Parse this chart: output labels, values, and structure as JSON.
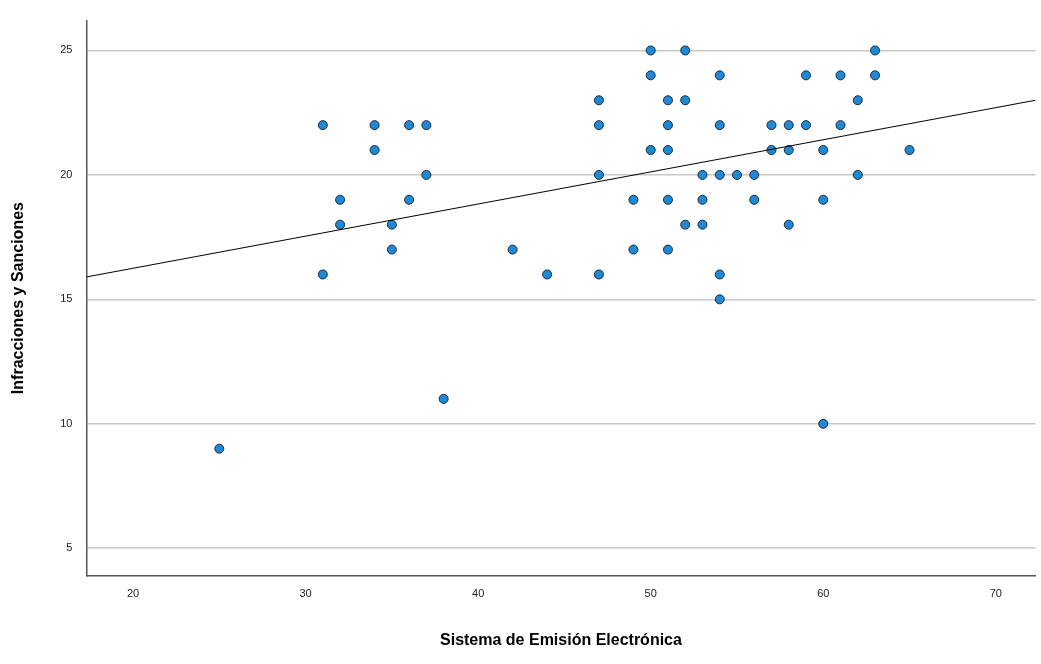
{
  "chart_data": {
    "type": "scatter",
    "xlabel": "Sistema de Emisión Electrónica",
    "ylabel": "Infracciones y Sanciones",
    "xlim": [
      17.3,
      72.3
    ],
    "xticks": [
      20,
      30,
      40,
      50,
      60,
      70
    ],
    "ylim": [
      3.9,
      26.2
    ],
    "yticks": [
      5,
      10,
      15,
      20,
      25
    ],
    "grid": "y",
    "legend": false,
    "series": [
      {
        "marker": "circle",
        "color": "#1e8ad6",
        "x": [
          50,
          52,
          63,
          50,
          54,
          59,
          61,
          63,
          47,
          51,
          52,
          62,
          47,
          51,
          54,
          57,
          58,
          59,
          61,
          50,
          51,
          57,
          58,
          60,
          65,
          47,
          53,
          54,
          55,
          56,
          62,
          49,
          51,
          53,
          56,
          60,
          52,
          53,
          58,
          49,
          51,
          44,
          47,
          54,
          54,
          31,
          34,
          36,
          37,
          34,
          37,
          32,
          36,
          32,
          35,
          35,
          42,
          31,
          25,
          38,
          60
        ],
        "values": [
          25,
          25,
          25,
          24,
          24,
          24,
          24,
          24,
          23,
          23,
          23,
          23,
          22,
          22,
          22,
          22,
          22,
          22,
          22,
          21,
          21,
          21,
          21,
          21,
          21,
          20,
          20,
          20,
          20,
          20,
          20,
          19,
          19,
          19,
          19,
          19,
          18,
          18,
          18,
          17,
          17,
          16,
          16,
          16,
          15,
          22,
          22,
          22,
          22,
          21,
          20,
          19,
          19,
          18,
          18,
          17,
          17,
          16,
          9,
          11,
          10
        ]
      },
      {
        "type": "line",
        "marker": "none",
        "color": "#000000",
        "x": [
          17.3,
          72.3
        ],
        "values": [
          15.9,
          23.0
        ]
      }
    ]
  }
}
